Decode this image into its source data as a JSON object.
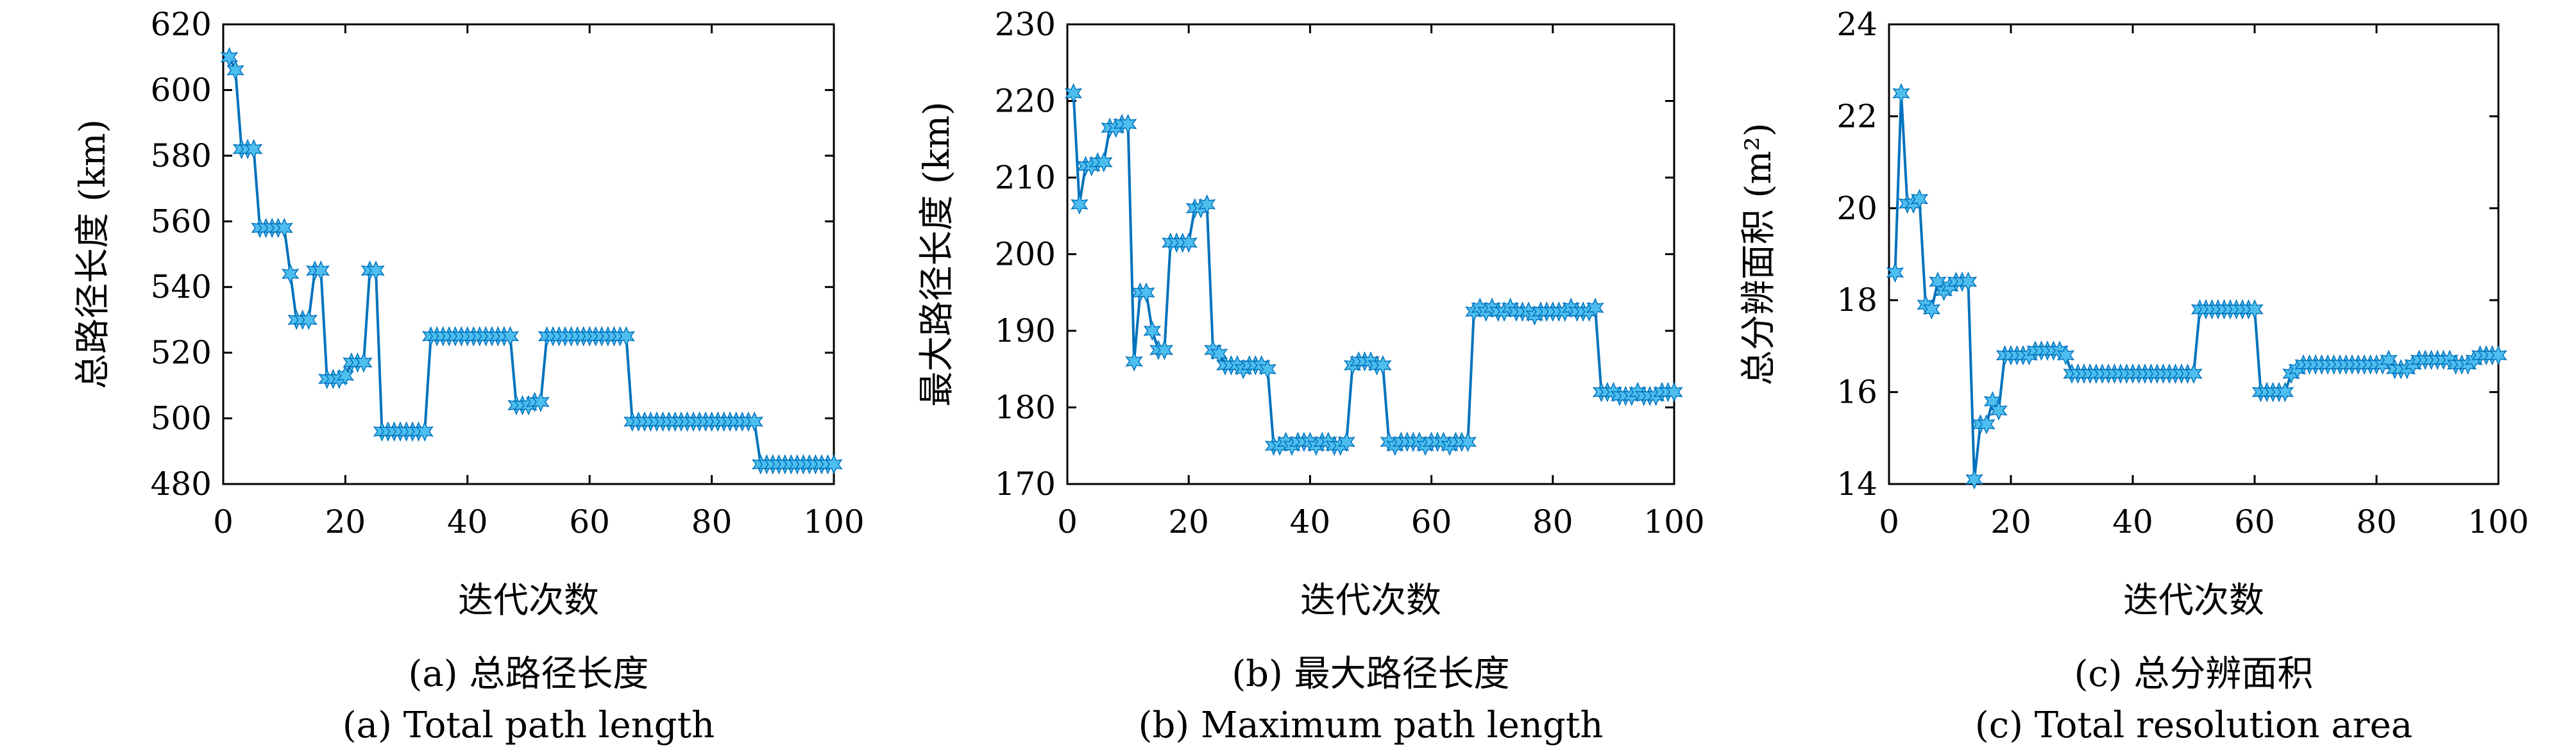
{
  "colors": {
    "line": "#0072BD",
    "marker": "#4DBEEE",
    "axis": "#000000"
  },
  "chart_data": [
    {
      "type": "line",
      "xlabel": "迭代次数",
      "ylabel": "总路径长度 (km)",
      "caption_cn": "(a) 总路径长度",
      "caption_en": "(a) Total path length",
      "xlim": [
        0,
        100
      ],
      "ylim": [
        480,
        620
      ],
      "xticks": [
        0,
        20,
        40,
        60,
        80,
        100
      ],
      "yticks": [
        480,
        500,
        520,
        540,
        560,
        580,
        600,
        620
      ],
      "marker": "hexagram",
      "series": [
        {
          "x": [
            1,
            2,
            3,
            4,
            5,
            6,
            7,
            8,
            9,
            10,
            11,
            12,
            13,
            14,
            15,
            16,
            17,
            18,
            19,
            20,
            21,
            22,
            23,
            24,
            25,
            26,
            27,
            28,
            29,
            30,
            31,
            32,
            33,
            34,
            35,
            36,
            37,
            38,
            39,
            40,
            41,
            42,
            43,
            44,
            45,
            46,
            47,
            48,
            49,
            50,
            51,
            52,
            53,
            54,
            55,
            56,
            57,
            58,
            59,
            60,
            61,
            62,
            63,
            64,
            65,
            66,
            67,
            68,
            69,
            70,
            71,
            72,
            73,
            74,
            75,
            76,
            77,
            78,
            79,
            80,
            81,
            82,
            83,
            84,
            85,
            86,
            87,
            88,
            89,
            90,
            91,
            92,
            93,
            94,
            95,
            96,
            97,
            98,
            99,
            100
          ],
          "y": [
            610,
            606,
            582,
            582,
            582,
            558,
            558,
            558,
            558,
            558,
            544,
            530,
            530,
            530,
            545,
            545,
            512,
            512,
            512,
            513,
            517,
            517,
            517,
            545,
            545,
            496,
            496,
            496,
            496,
            496,
            496,
            496,
            496,
            525,
            525,
            525,
            525,
            525,
            525,
            525,
            525,
            525,
            525,
            525,
            525,
            525,
            525,
            504,
            504,
            504,
            505,
            505,
            525,
            525,
            525,
            525,
            525,
            525,
            525,
            525,
            525,
            525,
            525,
            525,
            525,
            525,
            499,
            499,
            499,
            499,
            499,
            499,
            499,
            499,
            499,
            499,
            499,
            499,
            499,
            499,
            499,
            499,
            499,
            499,
            499,
            499,
            499,
            486,
            486,
            486,
            486,
            486,
            486,
            486,
            486,
            486,
            486,
            486,
            486,
            486
          ]
        }
      ]
    },
    {
      "type": "line",
      "xlabel": "迭代次数",
      "ylabel": "最大路径长度 (km)",
      "caption_cn": "(b) 最大路径长度",
      "caption_en": "(b) Maximum path length",
      "xlim": [
        0,
        100
      ],
      "ylim": [
        170,
        230
      ],
      "xticks": [
        0,
        20,
        40,
        60,
        80,
        100
      ],
      "yticks": [
        170,
        180,
        190,
        200,
        210,
        220,
        230
      ],
      "marker": "hexagram",
      "series": [
        {
          "x": [
            1,
            2,
            3,
            4,
            5,
            6,
            7,
            8,
            9,
            10,
            11,
            12,
            13,
            14,
            15,
            16,
            17,
            18,
            19,
            20,
            21,
            22,
            23,
            24,
            25,
            26,
            27,
            28,
            29,
            30,
            31,
            32,
            33,
            34,
            35,
            36,
            37,
            38,
            39,
            40,
            41,
            42,
            43,
            44,
            45,
            46,
            47,
            48,
            49,
            50,
            51,
            52,
            53,
            54,
            55,
            56,
            57,
            58,
            59,
            60,
            61,
            62,
            63,
            64,
            65,
            66,
            67,
            68,
            69,
            70,
            71,
            72,
            73,
            74,
            75,
            76,
            77,
            78,
            79,
            80,
            81,
            82,
            83,
            84,
            85,
            86,
            87,
            88,
            89,
            90,
            91,
            92,
            93,
            94,
            95,
            96,
            97,
            98,
            99,
            100
          ],
          "y": [
            221,
            206.5,
            211.5,
            211.5,
            212,
            212,
            216.5,
            216.5,
            217,
            217,
            186,
            195,
            195,
            190,
            187.5,
            187.5,
            201.5,
            201.5,
            201.5,
            201.5,
            206,
            206,
            206.5,
            187.5,
            187,
            185.5,
            185.5,
            185.5,
            185,
            185.5,
            185.5,
            185.5,
            185,
            175,
            175,
            175.5,
            175,
            175.5,
            175.5,
            175.5,
            175,
            175.5,
            175.5,
            175,
            175,
            175.5,
            185.5,
            186,
            186,
            186,
            185.5,
            185.5,
            175.5,
            175,
            175.5,
            175.5,
            175.5,
            175.5,
            175,
            175.5,
            175.5,
            175.5,
            175,
            175.5,
            175.5,
            175.5,
            192.5,
            193,
            192.5,
            193,
            192.5,
            192.5,
            193,
            192.5,
            192.5,
            192.5,
            192,
            192.5,
            192.5,
            192.5,
            192.5,
            192.5,
            193,
            192.5,
            192.5,
            192.5,
            193,
            182,
            182,
            182,
            181.5,
            181.5,
            181.5,
            182,
            181.5,
            181.5,
            181.5,
            182,
            182,
            182
          ]
        }
      ]
    },
    {
      "type": "line",
      "xlabel": "迭代次数",
      "ylabel": "总分辨面积 (m²)",
      "caption_cn": "(c) 总分辨面积",
      "caption_en": "(c) Total resolution area",
      "xlim": [
        0,
        100
      ],
      "ylim": [
        14,
        24
      ],
      "xticks": [
        0,
        20,
        40,
        60,
        80,
        100
      ],
      "yticks": [
        14,
        16,
        18,
        20,
        22,
        24
      ],
      "marker": "hexagram",
      "series": [
        {
          "x": [
            1,
            2,
            3,
            4,
            5,
            6,
            7,
            8,
            9,
            10,
            11,
            12,
            13,
            14,
            15,
            16,
            17,
            18,
            19,
            20,
            21,
            22,
            23,
            24,
            25,
            26,
            27,
            28,
            29,
            30,
            31,
            32,
            33,
            34,
            35,
            36,
            37,
            38,
            39,
            40,
            41,
            42,
            43,
            44,
            45,
            46,
            47,
            48,
            49,
            50,
            51,
            52,
            53,
            54,
            55,
            56,
            57,
            58,
            59,
            60,
            61,
            62,
            63,
            64,
            65,
            66,
            67,
            68,
            69,
            70,
            71,
            72,
            73,
            74,
            75,
            76,
            77,
            78,
            79,
            80,
            81,
            82,
            83,
            84,
            85,
            86,
            87,
            88,
            89,
            90,
            91,
            92,
            93,
            94,
            95,
            96,
            97,
            98,
            99,
            100
          ],
          "y": [
            18.6,
            22.5,
            20.1,
            20.1,
            20.2,
            17.9,
            17.8,
            18.4,
            18.2,
            18.3,
            18.4,
            18.4,
            18.4,
            14.1,
            15.3,
            15.3,
            15.8,
            15.6,
            16.8,
            16.8,
            16.8,
            16.8,
            16.8,
            16.9,
            16.9,
            16.9,
            16.9,
            16.9,
            16.8,
            16.4,
            16.4,
            16.4,
            16.4,
            16.4,
            16.4,
            16.4,
            16.4,
            16.4,
            16.4,
            16.4,
            16.4,
            16.4,
            16.4,
            16.4,
            16.4,
            16.4,
            16.4,
            16.4,
            16.4,
            16.4,
            17.8,
            17.8,
            17.8,
            17.8,
            17.8,
            17.8,
            17.8,
            17.8,
            17.8,
            17.8,
            16,
            16,
            16,
            16,
            16,
            16.4,
            16.5,
            16.6,
            16.6,
            16.6,
            16.6,
            16.6,
            16.6,
            16.6,
            16.6,
            16.6,
            16.6,
            16.6,
            16.6,
            16.6,
            16.6,
            16.7,
            16.5,
            16.5,
            16.5,
            16.6,
            16.7,
            16.7,
            16.7,
            16.7,
            16.7,
            16.7,
            16.6,
            16.6,
            16.6,
            16.7,
            16.8,
            16.8,
            16.8,
            16.8
          ]
        }
      ]
    }
  ]
}
